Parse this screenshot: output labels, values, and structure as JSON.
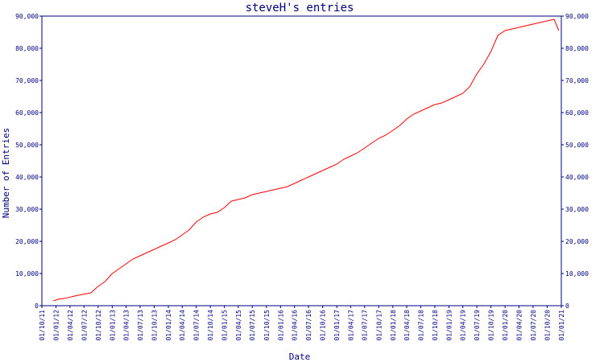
{
  "chart_data": {
    "type": "line",
    "title": "steveH's entries",
    "xlabel": "Date",
    "ylabel": "Number of Entries",
    "ylim": [
      0,
      90000
    ],
    "y_ticks": [
      "0",
      "10,000",
      "20,000",
      "30,000",
      "40,000",
      "50,000",
      "60,000",
      "70,000",
      "80,000",
      "90,000"
    ],
    "x_ticks": [
      "01/10/11",
      "01/01/12",
      "01/04/12",
      "01/07/12",
      "01/10/12",
      "01/01/13",
      "01/04/13",
      "01/07/13",
      "01/10/13",
      "01/01/14",
      "01/04/14",
      "01/07/14",
      "01/10/14",
      "01/01/15",
      "01/04/15",
      "01/07/15",
      "01/10/15",
      "01/01/16",
      "01/04/16",
      "01/07/16",
      "01/10/16",
      "01/01/17",
      "01/04/17",
      "01/07/17",
      "01/10/17",
      "01/01/18",
      "01/04/18",
      "01/07/18",
      "01/10/18",
      "01/01/19",
      "01/04/19",
      "01/07/19",
      "01/10/19",
      "01/01/20",
      "01/04/20",
      "01/07/20",
      "01/10/20",
      "01/01/21"
    ],
    "grid": false,
    "colors": {
      "line": "#ff0000",
      "axes": "#000080",
      "text": "#000080"
    },
    "series": [
      {
        "x": [
          "2011-12-15",
          "2012-01-15",
          "2012-03-01",
          "2012-05-01",
          "2012-07-01",
          "2012-08-15",
          "2012-10-01",
          "2012-11-15",
          "2013-01-01",
          "2013-02-15",
          "2013-04-01",
          "2013-05-15",
          "2013-07-01",
          "2013-08-15",
          "2013-10-01",
          "2013-11-15",
          "2014-01-01",
          "2014-02-15",
          "2014-04-01",
          "2014-05-15",
          "2014-07-01",
          "2014-08-15",
          "2014-10-01",
          "2014-11-15",
          "2015-01-01",
          "2015-02-15",
          "2015-04-01",
          "2015-05-15",
          "2015-07-01",
          "2015-08-15",
          "2015-10-01",
          "2015-11-15",
          "2016-01-01",
          "2016-02-15",
          "2016-04-01",
          "2016-05-15",
          "2016-07-01",
          "2016-08-15",
          "2016-10-01",
          "2016-11-15",
          "2017-01-01",
          "2017-02-15",
          "2017-04-01",
          "2017-05-15",
          "2017-07-01",
          "2017-08-15",
          "2017-10-01",
          "2017-11-15",
          "2018-01-01",
          "2018-02-15",
          "2018-04-01",
          "2018-05-15",
          "2018-07-01",
          "2018-08-15",
          "2018-10-01",
          "2018-11-15",
          "2019-01-01",
          "2019-02-15",
          "2019-04-01",
          "2019-05-15",
          "2019-07-01",
          "2019-08-15",
          "2019-10-01",
          "2019-11-15",
          "2020-01-01",
          "2020-02-15",
          "2020-04-01",
          "2020-05-15",
          "2020-07-01",
          "2020-08-15",
          "2020-10-01",
          "2020-11-15",
          "2020-12-15"
        ],
        "y": [
          1500,
          2000,
          2300,
          3000,
          3600,
          4000,
          6000,
          7500,
          10000,
          11500,
          13000,
          14500,
          15500,
          16500,
          17500,
          18500,
          19500,
          20500,
          22000,
          23500,
          26000,
          27500,
          28500,
          29000,
          30500,
          32500,
          33000,
          33500,
          34500,
          35000,
          35500,
          36000,
          36500,
          37000,
          38000,
          39000,
          40000,
          41000,
          42000,
          43000,
          44000,
          45500,
          46500,
          47500,
          49000,
          50500,
          52000,
          53000,
          54500,
          56000,
          58000,
          59500,
          60500,
          61500,
          62500,
          63000,
          64000,
          65000,
          66000,
          68000,
          72000,
          75000,
          79000,
          84000,
          85500,
          86000,
          86500,
          87000,
          87500,
          88000,
          88500,
          89000,
          85500
        ]
      }
    ]
  }
}
